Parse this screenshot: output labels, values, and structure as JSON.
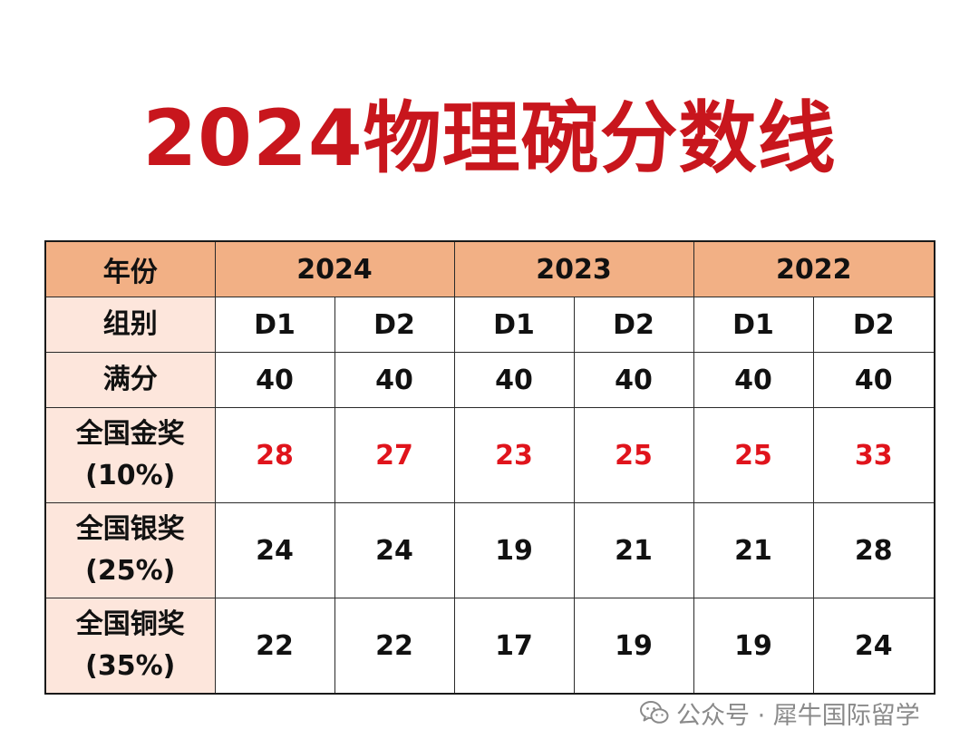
{
  "title": "2024物理碗分数线",
  "table": {
    "header_label": "年份",
    "years": [
      "2024",
      "2023",
      "2022"
    ],
    "group_label": "组别",
    "groups": [
      "D1",
      "D2",
      "D1",
      "D2",
      "D1",
      "D2"
    ],
    "full_score": {
      "label": "满分",
      "values": [
        "40",
        "40",
        "40",
        "40",
        "40",
        "40"
      ]
    },
    "gold": {
      "label_line1": "全国金奖",
      "label_line2": "(10%)",
      "values": [
        "28",
        "27",
        "23",
        "25",
        "25",
        "33"
      ]
    },
    "silver": {
      "label_line1": "全国银奖",
      "label_line2": "(25%)",
      "values": [
        "24",
        "24",
        "19",
        "21",
        "21",
        "28"
      ]
    },
    "bronze": {
      "label_line1": "全国铜奖",
      "label_line2": "(35%)",
      "values": [
        "22",
        "22",
        "17",
        "19",
        "19",
        "24"
      ]
    }
  },
  "colors": {
    "title": "#c8161d",
    "header_bg": "#f2b085",
    "label_bg": "#fde6dc",
    "gold_value": "#e0141c"
  },
  "watermark": {
    "icon": "wechat-icon",
    "text": "公众号 · 犀牛国际留学"
  }
}
